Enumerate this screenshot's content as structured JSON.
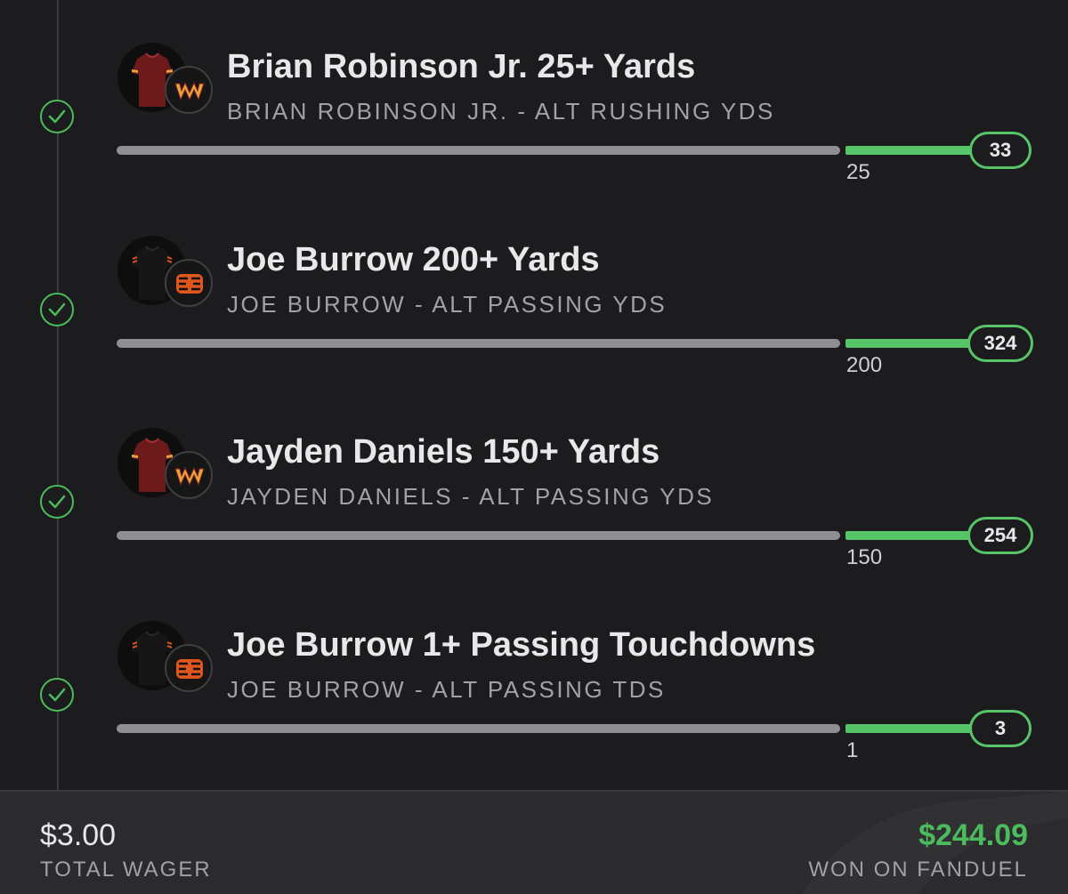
{
  "legs": [
    {
      "title": "Brian Robinson Jr. 25+ Yards",
      "subtitle": "BRIAN ROBINSON JR. - ALT RUSHING YDS",
      "threshold": "25",
      "result": "33",
      "team": "washington-commanders",
      "jersey_color": "#6d1a1c",
      "status": "won"
    },
    {
      "title": "Joe Burrow 200+ Yards",
      "subtitle": "JOE BURROW - ALT PASSING YDS",
      "threshold": "200",
      "result": "324",
      "team": "cincinnati-bengals",
      "jersey_color": "#111111",
      "status": "won"
    },
    {
      "title": "Jayden Daniels 150+ Yards",
      "subtitle": "JAYDEN DANIELS - ALT PASSING YDS",
      "threshold": "150",
      "result": "254",
      "team": "washington-commanders",
      "jersey_color": "#6d1a1c",
      "status": "won"
    },
    {
      "title": "Joe Burrow 1+ Passing Touchdowns",
      "subtitle": "JOE BURROW - ALT PASSING TDS",
      "threshold": "1",
      "result": "3",
      "team": "cincinnati-bengals",
      "jersey_color": "#111111",
      "status": "won"
    }
  ],
  "footer": {
    "wager_amount": "$3.00",
    "wager_label": "TOTAL WAGER",
    "won_amount": "$244.09",
    "won_label": "WON ON FANDUEL"
  },
  "colors": {
    "accent_green": "#4cbb5c",
    "background": "#1c1c1e",
    "footer_bg": "#2b2b2e"
  }
}
